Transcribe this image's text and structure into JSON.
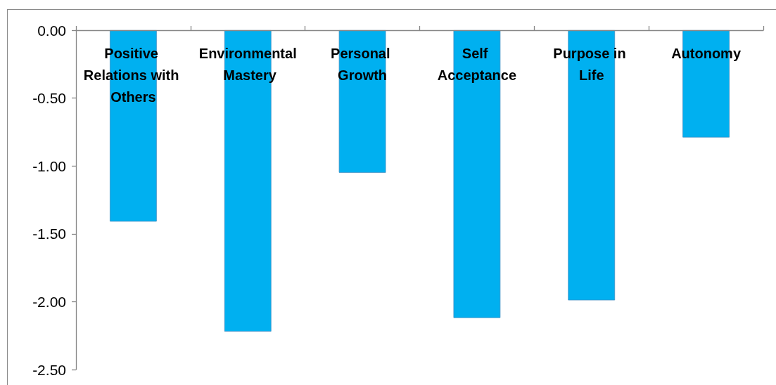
{
  "chart_data": {
    "type": "bar",
    "categories": [
      "Positive Relations with Others",
      "Environmental Mastery",
      "Personal Growth",
      "Self Acceptance",
      "Purpose in Life",
      "Autonomy"
    ],
    "values": [
      -1.41,
      -2.22,
      -1.05,
      -2.12,
      -1.99,
      -0.79
    ],
    "color": "#00b0f0",
    "ylim": [
      -2.5,
      0
    ],
    "yticks": [
      {
        "value": 0,
        "label": "0.00"
      },
      {
        "value": -0.5,
        "label": "-0.50"
      },
      {
        "value": -1,
        "label": "-1.00"
      },
      {
        "value": -1.5,
        "label": "-1.50"
      },
      {
        "value": -2,
        "label": "-2.00"
      },
      {
        "value": -2.5,
        "label": "-2.50"
      }
    ]
  }
}
